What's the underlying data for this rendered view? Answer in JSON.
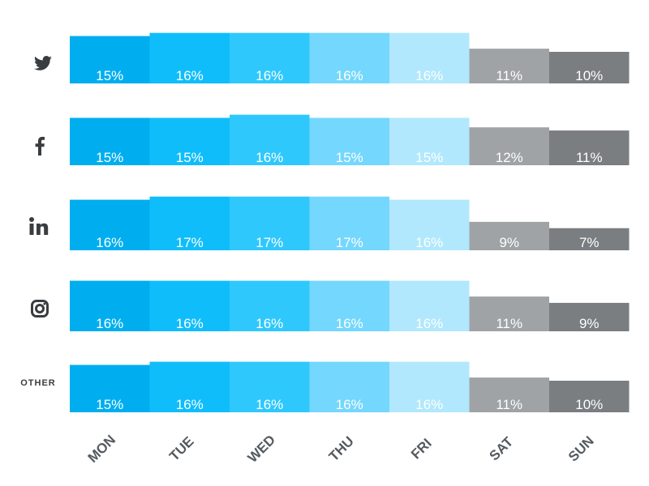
{
  "chart_data": {
    "type": "bar",
    "categories": [
      "MON",
      "TUE",
      "WED",
      "THU",
      "FRI",
      "SAT",
      "SUN"
    ],
    "series": [
      {
        "name": "",
        "icon": "twitter-icon",
        "values": [
          15,
          16,
          16,
          16,
          16,
          11,
          10
        ]
      },
      {
        "name": "",
        "icon": "facebook-icon",
        "values": [
          15,
          15,
          16,
          15,
          15,
          12,
          11
        ]
      },
      {
        "name": "",
        "icon": "linkedin-icon",
        "values": [
          16,
          17,
          17,
          17,
          16,
          9,
          7
        ]
      },
      {
        "name": "",
        "icon": "instagram-icon",
        "values": [
          16,
          16,
          16,
          16,
          16,
          11,
          9
        ]
      },
      {
        "name": "OTHER",
        "icon": "",
        "values": [
          15,
          16,
          16,
          16,
          16,
          11,
          10
        ]
      }
    ],
    "value_suffix": "%",
    "colors": [
      "#00aeef",
      "#10bdfb",
      "#2fc8fd",
      "#74d7fd",
      "#b1e8fd",
      "#9fa3a6",
      "#7a7e81"
    ],
    "label_color": "#ffffff",
    "axis_label_color": "#555a5f",
    "grid": false,
    "legend": "none"
  }
}
